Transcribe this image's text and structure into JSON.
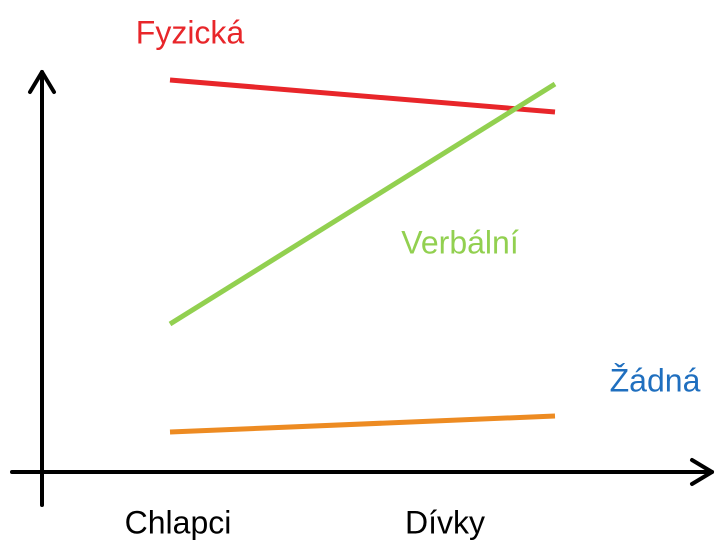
{
  "chart_data": {
    "type": "line",
    "categories": [
      "Chlapci",
      "Dívky"
    ],
    "series": [
      {
        "name": "Fyzická",
        "color": "#e8262a",
        "label_color": "#e8262a",
        "values": [
          98,
          90
        ]
      },
      {
        "name": "Verbální",
        "color": "#92d050",
        "label_color": "#92d050",
        "values": [
          37,
          97
        ]
      },
      {
        "name": "Žádná",
        "color": "#ed8b22",
        "label_color": "#1f6fbf",
        "values": [
          10,
          14
        ]
      }
    ],
    "ylim": [
      0,
      100
    ]
  }
}
